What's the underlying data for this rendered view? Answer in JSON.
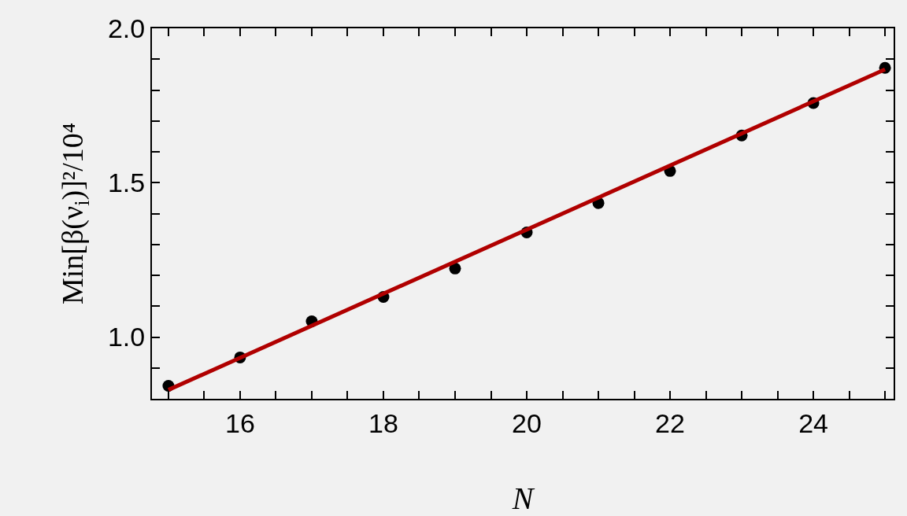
{
  "chart_data": {
    "type": "scatter",
    "xlabel": "N",
    "ylabel": "Min[β(ν$_{i}$)]²/10⁴",
    "xlim": [
      14.77,
      25.12
    ],
    "ylim": [
      0.8,
      2.0
    ],
    "xticks": [
      {
        "value": 15,
        "label": null
      },
      {
        "value": 15.5,
        "label": null
      },
      16,
      {
        "value": 16.5,
        "label": null
      },
      {
        "value": 17,
        "label": null
      },
      {
        "value": 17.5,
        "label": null
      },
      18,
      {
        "value": 18.5,
        "label": null
      },
      {
        "value": 19,
        "label": null
      },
      {
        "value": 19.5,
        "label": null
      },
      20,
      {
        "value": 20.5,
        "label": null
      },
      {
        "value": 21,
        "label": null
      },
      {
        "value": 21.5,
        "label": null
      },
      22,
      {
        "value": 22.5,
        "label": null
      },
      {
        "value": 23,
        "label": null
      },
      {
        "value": 23.5,
        "label": null
      },
      24,
      {
        "value": 24.5,
        "label": null
      },
      {
        "value": 25,
        "label": null
      }
    ],
    "yticks": [
      {
        "value": 0.9,
        "label": null
      },
      {
        "value": 1.0,
        "label": "1.0"
      },
      {
        "value": 1.1,
        "label": null
      },
      {
        "value": 1.2,
        "label": null
      },
      {
        "value": 1.3,
        "label": null
      },
      {
        "value": 1.4,
        "label": null
      },
      {
        "value": 1.5,
        "label": "1.5"
      },
      {
        "value": 1.6,
        "label": null
      },
      {
        "value": 1.7,
        "label": null
      },
      {
        "value": 1.8,
        "label": null
      },
      {
        "value": 1.9,
        "label": null
      },
      {
        "value": 2.0,
        "label": "2.0"
      }
    ],
    "grid": false,
    "series": [
      {
        "color": "#000000",
        "marker": "circle",
        "x": [
          15,
          16,
          17,
          18,
          19,
          20,
          21,
          22,
          23,
          24,
          25
        ],
        "values": [
          0.842,
          0.934,
          1.051,
          1.13,
          1.222,
          1.339,
          1.434,
          1.538,
          1.653,
          1.758,
          1.872
        ]
      },
      {
        "type": "line",
        "color": "#b00000",
        "line_style": "solid",
        "marker": "none",
        "x": [
          15,
          25
        ],
        "values": [
          0.829,
          1.867
        ]
      }
    ]
  }
}
